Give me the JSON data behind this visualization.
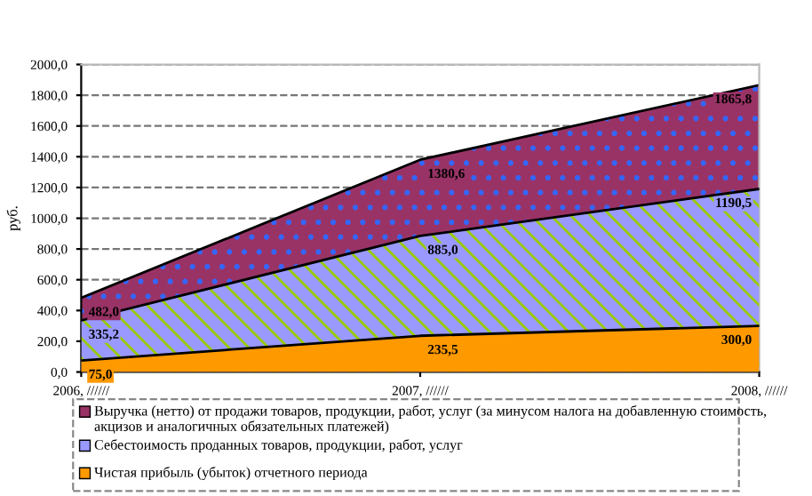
{
  "chart_data": {
    "type": "area",
    "ylabel": "руб.",
    "categories": [
      "2006, //////",
      "2007, //////",
      "2008, //////"
    ],
    "series": [
      {
        "name": "Выручка (нетто) от продажи товаров, продукции, работ, услуг (за минусом налога на добавленную стоимость, акцизов и аналогичных обязательных платежей)",
        "color": "#993366",
        "values": [
          482.0,
          1380.6,
          1865.8
        ],
        "value_labels": [
          "482,0",
          "1380,6",
          "1865,8"
        ]
      },
      {
        "name": "Себестоимость проданных товаров, продукции, работ, услуг",
        "color": "#9999ff",
        "values": [
          335.2,
          885.0,
          1190.5
        ],
        "value_labels": [
          "335,2",
          "885,0",
          "1190,5"
        ]
      },
      {
        "name": "Чистая прибыль (убыток) отчетного периода",
        "color": "#ff9900",
        "values": [
          75.0,
          235.5,
          300.0
        ],
        "value_labels": [
          "75,0",
          "235,5",
          "300,0"
        ]
      }
    ],
    "ylim": [
      0,
      2000
    ],
    "yticks": [
      {
        "value": 0,
        "label": "0,0"
      },
      {
        "value": 200,
        "label": "200,0"
      },
      {
        "value": 400,
        "label": "400,0"
      },
      {
        "value": 600,
        "label": "600,0"
      },
      {
        "value": 800,
        "label": "800,0"
      },
      {
        "value": 1000,
        "label": "1000,0"
      },
      {
        "value": 1200,
        "label": "1200,0"
      },
      {
        "value": 1400,
        "label": "1400,0"
      },
      {
        "value": 1600,
        "label": "1600,0"
      },
      {
        "value": 1800,
        "label": "1800,0"
      },
      {
        "value": 2000,
        "label": "2000,0"
      }
    ],
    "grid": "y",
    "legend": "bottom"
  }
}
